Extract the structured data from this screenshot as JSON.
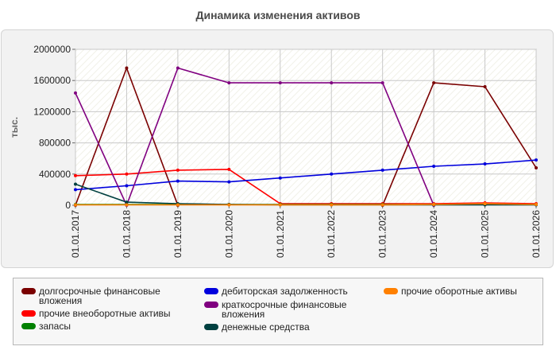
{
  "chart_data": {
    "type": "line",
    "title": "Динамика изменения активов",
    "ylabel": "тыс.",
    "xlabel": "",
    "ylim": [
      0,
      2000000
    ],
    "yticks": [
      "0",
      "400000",
      "800000",
      "1200000",
      "1600000",
      "2000000"
    ],
    "categories": [
      "01.01.2017",
      "01.01.2018",
      "01.01.2019",
      "01.01.2020",
      "01.01.2021",
      "01.01.2022",
      "01.01.2023",
      "01.01.2024",
      "01.01.2025",
      "01.01.2026"
    ],
    "legend_position": "bottom",
    "series": [
      {
        "name": "долгосрочные финансовые вложения",
        "color": "#7a0000",
        "values": [
          0,
          1760000,
          0,
          null,
          null,
          null,
          0,
          1570000,
          1520000,
          480000
        ]
      },
      {
        "name": "прочие внеоборотные активы",
        "color": "#ff0000",
        "values": [
          380000,
          400000,
          450000,
          460000,
          20000,
          20000,
          20000,
          20000,
          30000,
          20000
        ]
      },
      {
        "name": "запасы",
        "color": "#008000",
        "values": [
          10000,
          10000,
          10000,
          10000,
          10000,
          10000,
          10000,
          10000,
          10000,
          10000
        ]
      },
      {
        "name": "дебиторская задолженность",
        "color": "#0000dd",
        "values": [
          200000,
          250000,
          310000,
          300000,
          350000,
          400000,
          450000,
          500000,
          530000,
          580000
        ]
      },
      {
        "name": "краткосрочные финансовые вложения",
        "color": "#800080",
        "values": [
          1440000,
          0,
          1760000,
          1570000,
          1570000,
          1570000,
          1570000,
          0,
          null,
          null
        ]
      },
      {
        "name": "денежные средства",
        "color": "#004040",
        "values": [
          270000,
          40000,
          20000,
          10000,
          5000,
          5000,
          5000,
          5000,
          5000,
          5000
        ]
      },
      {
        "name": "прочие оборотные активы",
        "color": "#ff8000",
        "values": [
          5000,
          5000,
          5000,
          5000,
          5000,
          5000,
          5000,
          10000,
          20000,
          10000
        ]
      }
    ]
  }
}
